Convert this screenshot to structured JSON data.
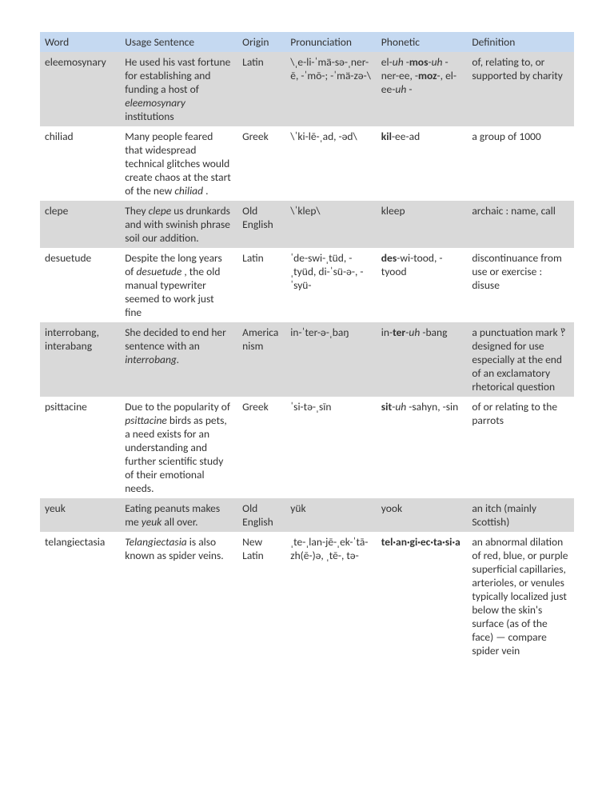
{
  "colors": {
    "header_bg": "#c5d9f1",
    "row_alt_bg": "#d9d9d9",
    "row_bg": "#ffffff",
    "text": "#333333"
  },
  "columns": [
    {
      "key": "word",
      "label": "Word",
      "class": "col-word"
    },
    {
      "key": "usage",
      "label": "Usage Sentence",
      "class": "col-usage"
    },
    {
      "key": "origin",
      "label": "Origin",
      "class": "col-origin"
    },
    {
      "key": "pron",
      "label": "Pronunciation",
      "class": "col-pron"
    },
    {
      "key": "phon",
      "label": "Phonetic",
      "class": "col-phon"
    },
    {
      "key": "def",
      "label": "Definition",
      "class": "col-def"
    }
  ],
  "rows": [
    {
      "word": "eleemosynary",
      "usage": "He used his vast fortune for establishing and funding a host of <em>eleemosynary</em> institutions",
      "origin": "Latin",
      "pron": "\\ˌe-li-ˈmä-sə-ˌner-ē, -ˈmō-; -ˈmä-zə-\\",
      "phon": "el-<em>uh</em> -<b>mos</b>-<em>uh</em> -ner-ee, -<b>moz</b>-, el-ee-<em>uh</em> -",
      "def": "of, relating to, or supported by charity"
    },
    {
      "word": "chiliad",
      "usage": "Many people feared that widespread technical glitches would create chaos at the start of the new <em>chiliad</em> .",
      "origin": "Greek",
      "pron": "\\ˈki-lē-ˌad, -əd\\",
      "phon": "<b>kil</b>-ee-ad",
      "def": "a group of 1000"
    },
    {
      "word": "clepe",
      "usage": "They <em>clepe</em>  us drunkards and with swinish phrase soil our addition.",
      "origin": "Old English",
      "pron": "\\ˈklep\\",
      "phon": "kleep",
      "def": "archaic  :  name, call"
    },
    {
      "word": "desuetude",
      "usage": "Despite the long years of <em>desuetude</em> , the old manual typewriter seemed to work just fine",
      "origin": "Latin",
      "pron": "ˈde-swi-ˌtüd, -ˌtyüd, di-ˈsü-ə-, -ˈsyü-",
      "phon": "<b>des</b>-wi-tood, -tyood",
      "def": "discontinuance from use or exercise : disuse"
    },
    {
      "word": "interrobang, interabang",
      "usage": "She decided to end her sentence with an <em>interrobang.</em>",
      "origin": "Americanism",
      "pron": "in-ˈter-ə-ˌbaŋ",
      "phon": "in-<b>ter</b>-<em>uh</em> -bang",
      "def": "a punctuation mark ‽ designed for use especially at the end of an exclamatory rhetorical question"
    },
    {
      "word": "psittacine",
      "usage": "Due to the popularity of <em>psittacine</em>  birds as pets, a need exists for an understanding and further scientific study of their emotional needs.",
      "origin": "Greek",
      "pron": "ˈsi-tə-ˌsīn",
      "phon": "<b>sit</b>-<em>uh</em> -sahyn, -sin",
      "def": "of or relating to the parrots"
    },
    {
      "word": "yeuk",
      "usage": "Eating peanuts makes me <em>yeuk</em>  all over.",
      "origin": "Old English",
      "pron": "yük",
      "phon": "yook",
      "def": "an itch (mainly Scottish)"
    },
    {
      "word": "telangiectasia",
      "usage": "<em>Telangiectasia</em>  is also known as spider veins.",
      "origin": "New Latin",
      "pron": "ˌte-ˌlan-jē-ˌek-ˈtā-zh(ē-)ə, ˌtē-, tə-",
      "phon": "<b>tel·an·gi·ec·ta·si·a</b>",
      "def": "an abnormal dilation of red, blue, or purple superficial capillaries, arterioles, or venules typically localized just below the skin's surface (as of the face) — compare spider vein"
    }
  ]
}
